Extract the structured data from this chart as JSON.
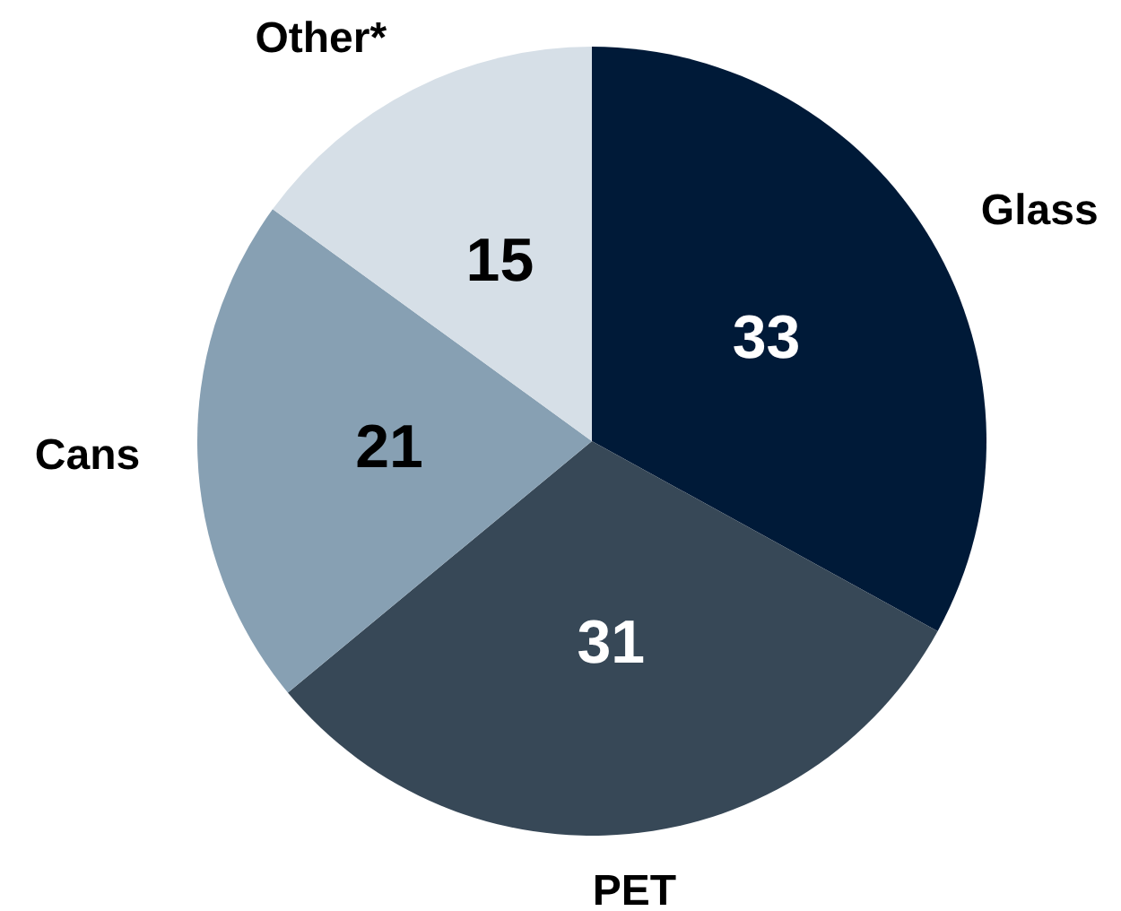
{
  "chart_data": {
    "type": "pie",
    "categories": [
      "Glass",
      "PET",
      "Cans",
      "Other*"
    ],
    "values": [
      33,
      31,
      21,
      15
    ],
    "colors": [
      "#001a38",
      "#374857",
      "#87a0b3",
      "#d6dfe7"
    ],
    "data_labels": true,
    "legend": false
  }
}
